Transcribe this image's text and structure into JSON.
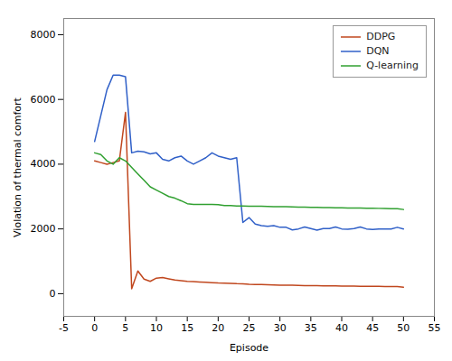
{
  "chart_data": {
    "type": "line",
    "xlabel": "Episode",
    "ylabel": "Violation of thermal comfort",
    "xlim": [
      -5,
      55
    ],
    "ylim": [
      -700,
      8500
    ],
    "xticks": [
      -5,
      0,
      5,
      10,
      15,
      20,
      25,
      30,
      35,
      40,
      45,
      50,
      55
    ],
    "yticks": [
      0,
      2000,
      4000,
      6000,
      8000
    ],
    "grid": false,
    "legend": "upper right",
    "x": [
      0,
      1,
      2,
      3,
      4,
      5,
      6,
      7,
      8,
      9,
      10,
      11,
      12,
      13,
      14,
      15,
      16,
      17,
      18,
      19,
      20,
      21,
      22,
      23,
      24,
      25,
      26,
      27,
      28,
      29,
      30,
      31,
      32,
      33,
      34,
      35,
      36,
      37,
      38,
      39,
      40,
      41,
      42,
      43,
      44,
      45,
      46,
      47,
      48,
      49,
      50
    ],
    "series": [
      {
        "name": "DDPG",
        "color": "#c0471e",
        "values": [
          4100,
          4050,
          4000,
          4050,
          4100,
          5600,
          150,
          700,
          450,
          380,
          480,
          500,
          460,
          420,
          400,
          380,
          370,
          360,
          350,
          340,
          330,
          325,
          320,
          310,
          305,
          290,
          285,
          280,
          275,
          270,
          265,
          260,
          260,
          255,
          250,
          248,
          245,
          242,
          240,
          238,
          237,
          235,
          233,
          230,
          228,
          227,
          225,
          222,
          220,
          218,
          200
        ]
      },
      {
        "name": "DQN",
        "color": "#3060c8",
        "values": [
          4700,
          5500,
          6300,
          6750,
          6750,
          6700,
          4350,
          4400,
          4380,
          4320,
          4350,
          4150,
          4100,
          4200,
          4250,
          4100,
          4000,
          4100,
          4200,
          4350,
          4250,
          4200,
          4150,
          4200,
          2200,
          2350,
          2150,
          2100,
          2080,
          2100,
          2050,
          2050,
          1970,
          2000,
          2060,
          2010,
          1960,
          2010,
          2010,
          2060,
          2000,
          1990,
          2010,
          2060,
          2000,
          1980,
          2000,
          2000,
          2000,
          2050,
          2000
        ]
      },
      {
        "name": "Q-learning",
        "color": "#30a030",
        "values": [
          4350,
          4300,
          4100,
          4000,
          4200,
          4100,
          3900,
          3700,
          3500,
          3300,
          3200,
          3100,
          3000,
          2950,
          2870,
          2780,
          2760,
          2760,
          2760,
          2760,
          2750,
          2720,
          2720,
          2710,
          2710,
          2700,
          2700,
          2700,
          2695,
          2690,
          2690,
          2685,
          2680,
          2675,
          2670,
          2665,
          2665,
          2660,
          2658,
          2655,
          2650,
          2648,
          2645,
          2643,
          2640,
          2638,
          2635,
          2630,
          2628,
          2625,
          2600
        ]
      }
    ]
  }
}
